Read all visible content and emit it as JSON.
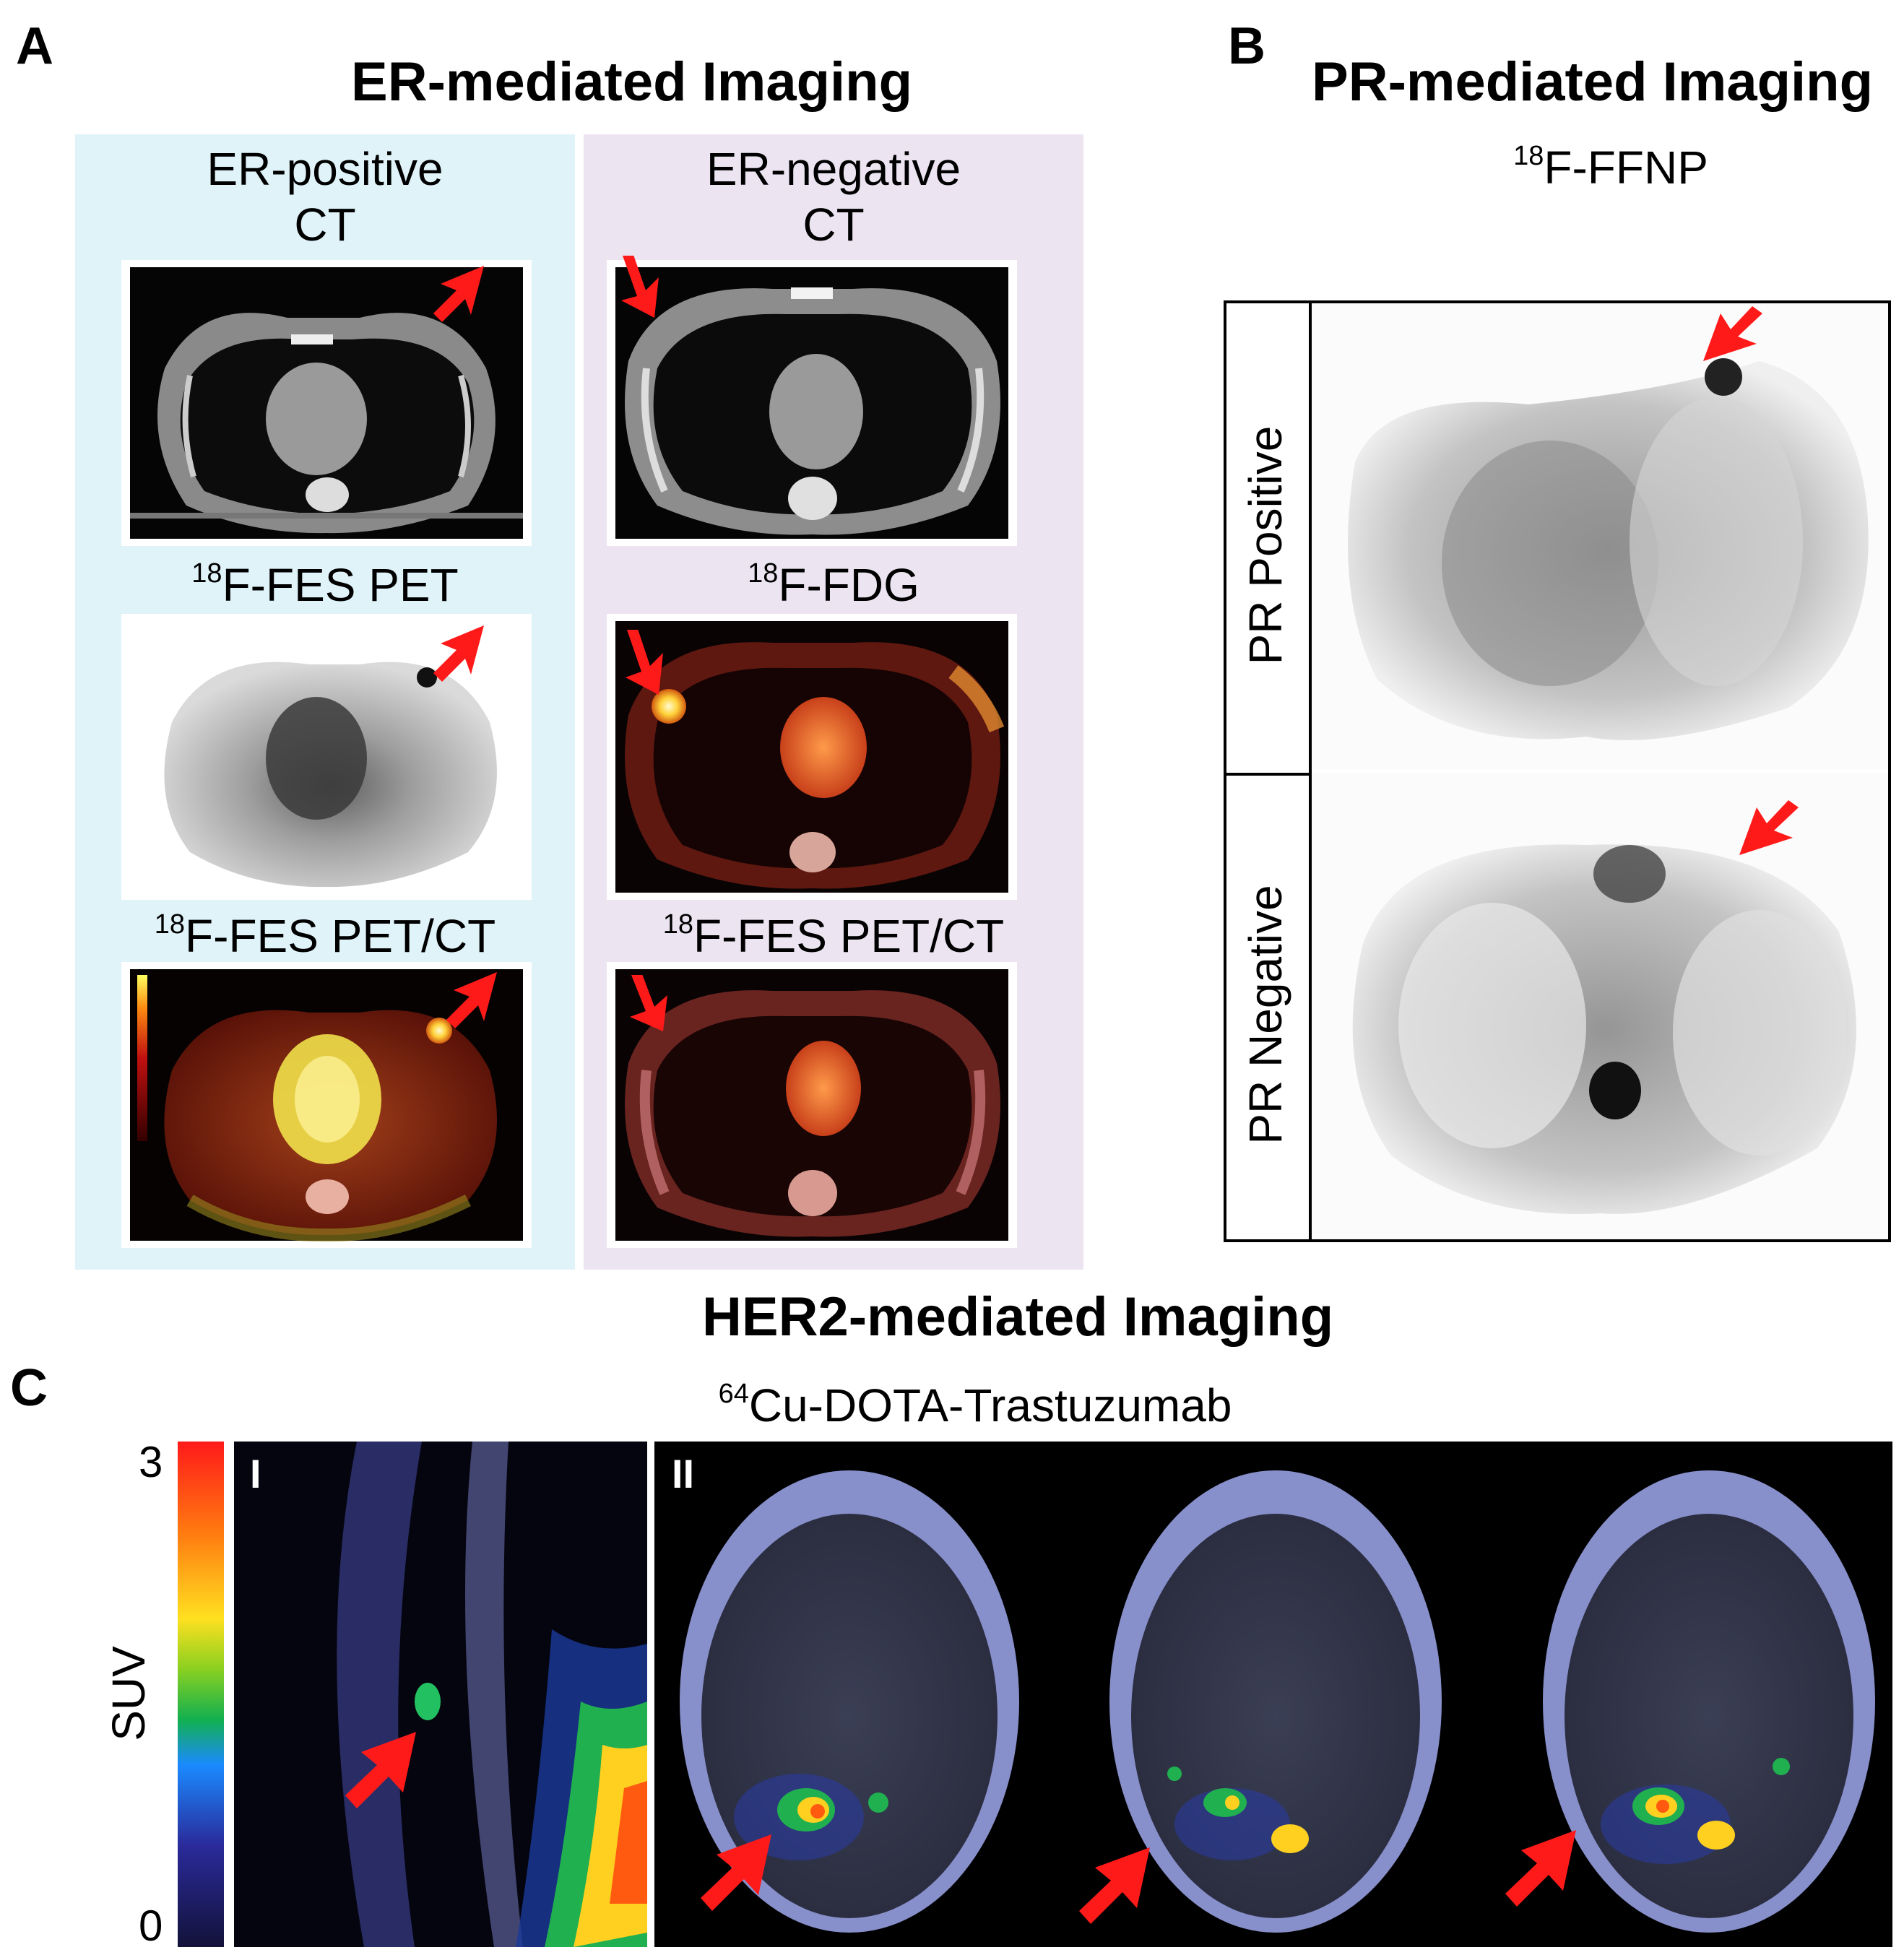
{
  "panelA": {
    "letter": "A",
    "title": "ER-mediated Imaging",
    "colors": {
      "left_bg": "#dff3f8",
      "right_bg": "#ece5f1"
    },
    "left_column": {
      "heading_line1": "ER-positive",
      "heading_line2": "CT",
      "fes_pet_sup": "18",
      "fes_pet_label": "F-FES PET",
      "fes_petct_sup": "18",
      "fes_petct_label": "F-FES PET/CT"
    },
    "right_column": {
      "heading_line1": "ER-negative",
      "heading_line2": "CT",
      "fdg_sup": "18",
      "fdg_label": "F-FDG",
      "fes_petct_sup": "18",
      "fes_petct_label": "F-FES PET/CT"
    }
  },
  "panelB": {
    "letter": "B",
    "title": "PR-mediated Imaging",
    "tracer_sup": "18",
    "tracer": "F-FFNP",
    "row1_label": "PR Positive",
    "row2_label": "PR Negative"
  },
  "panelC": {
    "letter": "C",
    "title": "HER2-mediated Imaging",
    "tracer_sup": "64",
    "tracer": "Cu-DOTA-Trastuzumab",
    "colorbar": {
      "label": "SUV",
      "max": "3",
      "min": "0"
    },
    "subpanel1": "I",
    "subpanel2": "II"
  },
  "icons": {
    "arrow": "red-arrow-icon",
    "arrow_color": "#ff1a1a"
  }
}
